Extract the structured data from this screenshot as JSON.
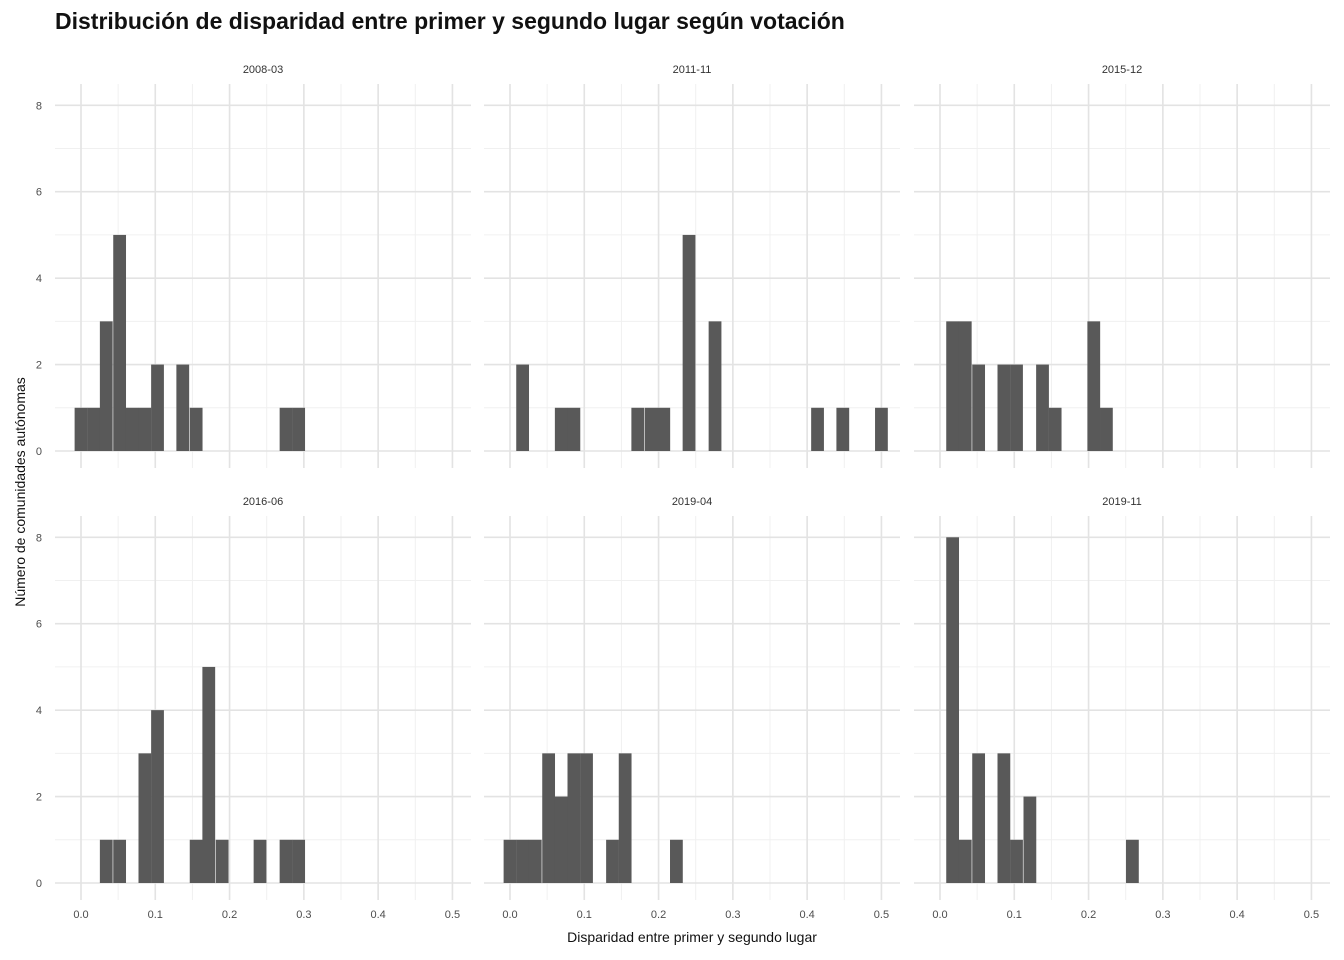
{
  "chart_data": {
    "type": "bar",
    "title": "Distribución de disparidad entre primer y segundo lugar según votación",
    "xlabel": "Disparidad entre primer y segundo lugar",
    "ylabel": "Número de comunidades autónomas",
    "xlim": [
      -0.035,
      0.525
    ],
    "ylim": [
      0,
      8.4
    ],
    "x_ticks": [
      "0.0",
      "0.1",
      "0.2",
      "0.3",
      "0.4",
      "0.5"
    ],
    "y_ticks": [
      "0",
      "2",
      "4",
      "6",
      "8"
    ],
    "grid": true,
    "bin_width": 0.0172,
    "bar_color": "#595959",
    "panels": [
      {
        "label": "2008-03",
        "bins": [
          {
            "x": 0.0,
            "count": 1
          },
          {
            "x": 0.017,
            "count": 1
          },
          {
            "x": 0.034,
            "count": 3
          },
          {
            "x": 0.052,
            "count": 5
          },
          {
            "x": 0.069,
            "count": 1
          },
          {
            "x": 0.086,
            "count": 1
          },
          {
            "x": 0.103,
            "count": 2
          },
          {
            "x": 0.137,
            "count": 2
          },
          {
            "x": 0.155,
            "count": 1
          },
          {
            "x": 0.276,
            "count": 1
          },
          {
            "x": 0.293,
            "count": 1
          }
        ]
      },
      {
        "label": "2011-11",
        "bins": [
          {
            "x": 0.017,
            "count": 2
          },
          {
            "x": 0.069,
            "count": 1
          },
          {
            "x": 0.086,
            "count": 1
          },
          {
            "x": 0.172,
            "count": 1
          },
          {
            "x": 0.19,
            "count": 1
          },
          {
            "x": 0.207,
            "count": 1
          },
          {
            "x": 0.241,
            "count": 5
          },
          {
            "x": 0.276,
            "count": 3
          },
          {
            "x": 0.414,
            "count": 1
          },
          {
            "x": 0.448,
            "count": 1
          },
          {
            "x": 0.5,
            "count": 1
          }
        ]
      },
      {
        "label": "2015-12",
        "bins": [
          {
            "x": 0.017,
            "count": 3
          },
          {
            "x": 0.034,
            "count": 3
          },
          {
            "x": 0.052,
            "count": 2
          },
          {
            "x": 0.086,
            "count": 2
          },
          {
            "x": 0.103,
            "count": 2
          },
          {
            "x": 0.138,
            "count": 2
          },
          {
            "x": 0.155,
            "count": 1
          },
          {
            "x": 0.207,
            "count": 3
          },
          {
            "x": 0.224,
            "count": 1
          }
        ]
      },
      {
        "label": "2016-06",
        "bins": [
          {
            "x": 0.034,
            "count": 1
          },
          {
            "x": 0.052,
            "count": 1
          },
          {
            "x": 0.086,
            "count": 3
          },
          {
            "x": 0.103,
            "count": 4
          },
          {
            "x": 0.155,
            "count": 1
          },
          {
            "x": 0.172,
            "count": 5
          },
          {
            "x": 0.19,
            "count": 1
          },
          {
            "x": 0.241,
            "count": 1
          },
          {
            "x": 0.276,
            "count": 1
          },
          {
            "x": 0.293,
            "count": 1
          }
        ]
      },
      {
        "label": "2019-04",
        "bins": [
          {
            "x": 0.0,
            "count": 1
          },
          {
            "x": 0.017,
            "count": 1
          },
          {
            "x": 0.034,
            "count": 1
          },
          {
            "x": 0.052,
            "count": 3
          },
          {
            "x": 0.069,
            "count": 2
          },
          {
            "x": 0.086,
            "count": 3
          },
          {
            "x": 0.103,
            "count": 3
          },
          {
            "x": 0.138,
            "count": 1
          },
          {
            "x": 0.155,
            "count": 3
          },
          {
            "x": 0.224,
            "count": 1
          }
        ]
      },
      {
        "label": "2019-11",
        "bins": [
          {
            "x": 0.017,
            "count": 8
          },
          {
            "x": 0.034,
            "count": 1
          },
          {
            "x": 0.052,
            "count": 3
          },
          {
            "x": 0.086,
            "count": 3
          },
          {
            "x": 0.103,
            "count": 1
          },
          {
            "x": 0.121,
            "count": 2
          },
          {
            "x": 0.259,
            "count": 1
          }
        ]
      }
    ]
  }
}
